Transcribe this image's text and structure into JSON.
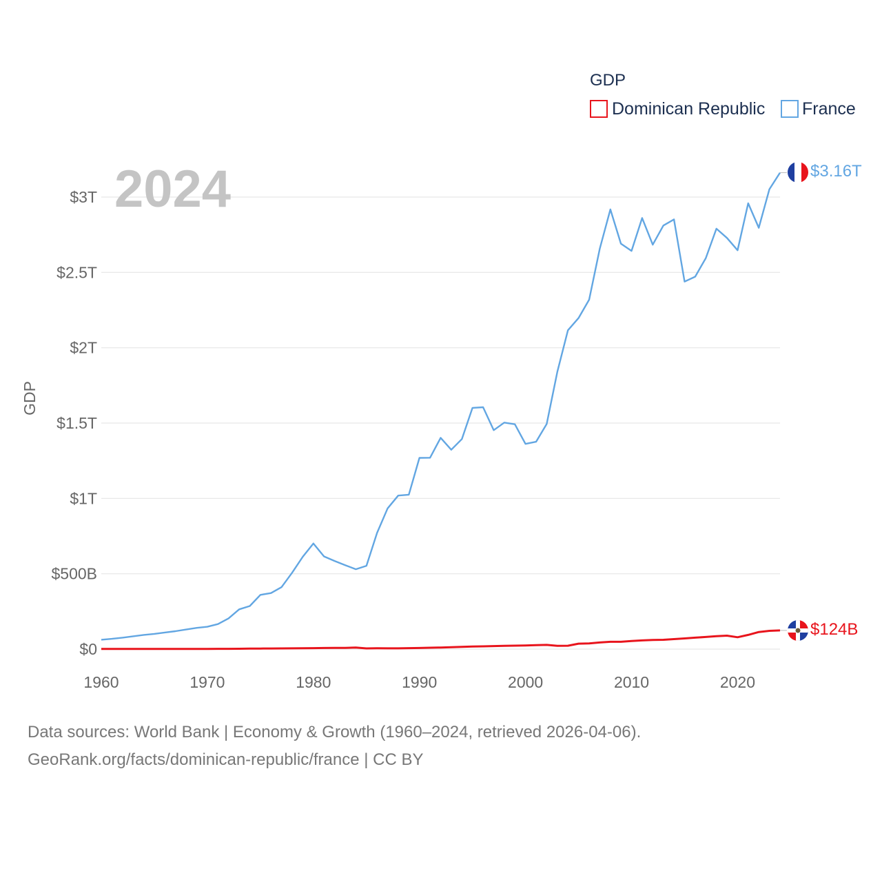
{
  "chart_data": {
    "type": "line",
    "title": "",
    "year_label": "2024",
    "ylabel": "GDP",
    "xlabel": "",
    "xlim": [
      1960,
      2024
    ],
    "ylim": [
      0,
      3.16
    ],
    "y_unit": "trillion USD",
    "x_ticks": [
      "1960",
      "1970",
      "1980",
      "1990",
      "2000",
      "2010",
      "2020"
    ],
    "x_tick_values": [
      1960,
      1970,
      1980,
      1990,
      2000,
      2010,
      2020
    ],
    "y_ticks": [
      "$0",
      "$500B",
      "$1T",
      "$1.5T",
      "$2T",
      "$2.5T",
      "$3T"
    ],
    "y_tick_values": [
      0,
      0.5,
      1.0,
      1.5,
      2.0,
      2.5,
      3.0
    ],
    "legend": {
      "title": "GDP",
      "position": "top-right"
    },
    "x": [
      1960,
      1961,
      1962,
      1963,
      1964,
      1965,
      1966,
      1967,
      1968,
      1969,
      1970,
      1971,
      1972,
      1973,
      1974,
      1975,
      1976,
      1977,
      1978,
      1979,
      1980,
      1981,
      1982,
      1983,
      1984,
      1985,
      1986,
      1987,
      1988,
      1989,
      1990,
      1991,
      1992,
      1993,
      1994,
      1995,
      1996,
      1997,
      1998,
      1999,
      2000,
      2001,
      2002,
      2003,
      2004,
      2005,
      2006,
      2007,
      2008,
      2009,
      2010,
      2011,
      2012,
      2013,
      2014,
      2015,
      2016,
      2017,
      2018,
      2019,
      2020,
      2021,
      2022,
      2023,
      2024
    ],
    "series": [
      {
        "name": "Dominican Republic",
        "color": "#e8141c",
        "end_label": "$124B",
        "flag": "dominican-republic-flag",
        "values": [
          0.0007,
          0.0007,
          0.0008,
          0.0009,
          0.001,
          0.0009,
          0.001,
          0.0011,
          0.0012,
          0.0013,
          0.0015,
          0.0017,
          0.002,
          0.0023,
          0.003,
          0.0036,
          0.004,
          0.0046,
          0.0049,
          0.0056,
          0.0066,
          0.0074,
          0.0078,
          0.0083,
          0.01,
          0.0047,
          0.0053,
          0.0052,
          0.0051,
          0.0063,
          0.0071,
          0.0093,
          0.0107,
          0.0125,
          0.0146,
          0.0167,
          0.0183,
          0.0203,
          0.0218,
          0.0227,
          0.0243,
          0.0261,
          0.0277,
          0.0213,
          0.0224,
          0.0359,
          0.0378,
          0.0439,
          0.0485,
          0.0487,
          0.0535,
          0.0578,
          0.0603,
          0.0618,
          0.0661,
          0.071,
          0.0759,
          0.0803,
          0.0856,
          0.089,
          0.0785,
          0.0942,
          0.1136,
          0.1211,
          0.124
        ]
      },
      {
        "name": "France",
        "color": "#62a6e2",
        "end_label": "$3.16T",
        "flag": "france-flag",
        "values": [
          0.062,
          0.068,
          0.076,
          0.085,
          0.094,
          0.101,
          0.11,
          0.119,
          0.13,
          0.141,
          0.148,
          0.166,
          0.204,
          0.264,
          0.286,
          0.36,
          0.372,
          0.411,
          0.507,
          0.613,
          0.701,
          0.615,
          0.585,
          0.557,
          0.53,
          0.553,
          0.771,
          0.934,
          1.019,
          1.025,
          1.269,
          1.27,
          1.402,
          1.323,
          1.394,
          1.601,
          1.605,
          1.453,
          1.503,
          1.492,
          1.362,
          1.376,
          1.494,
          1.84,
          2.116,
          2.197,
          2.319,
          2.657,
          2.918,
          2.691,
          2.643,
          2.861,
          2.684,
          2.811,
          2.852,
          2.439,
          2.472,
          2.595,
          2.79,
          2.729,
          2.647,
          2.959,
          2.796,
          3.052,
          3.162
        ]
      }
    ]
  },
  "footer": {
    "line1": "Data sources: World Bank | Economy & Growth (1960–2024, retrieved 2026-04-06).",
    "line2": "GeoRank.org/facts/dominican-republic/france | CC BY"
  }
}
